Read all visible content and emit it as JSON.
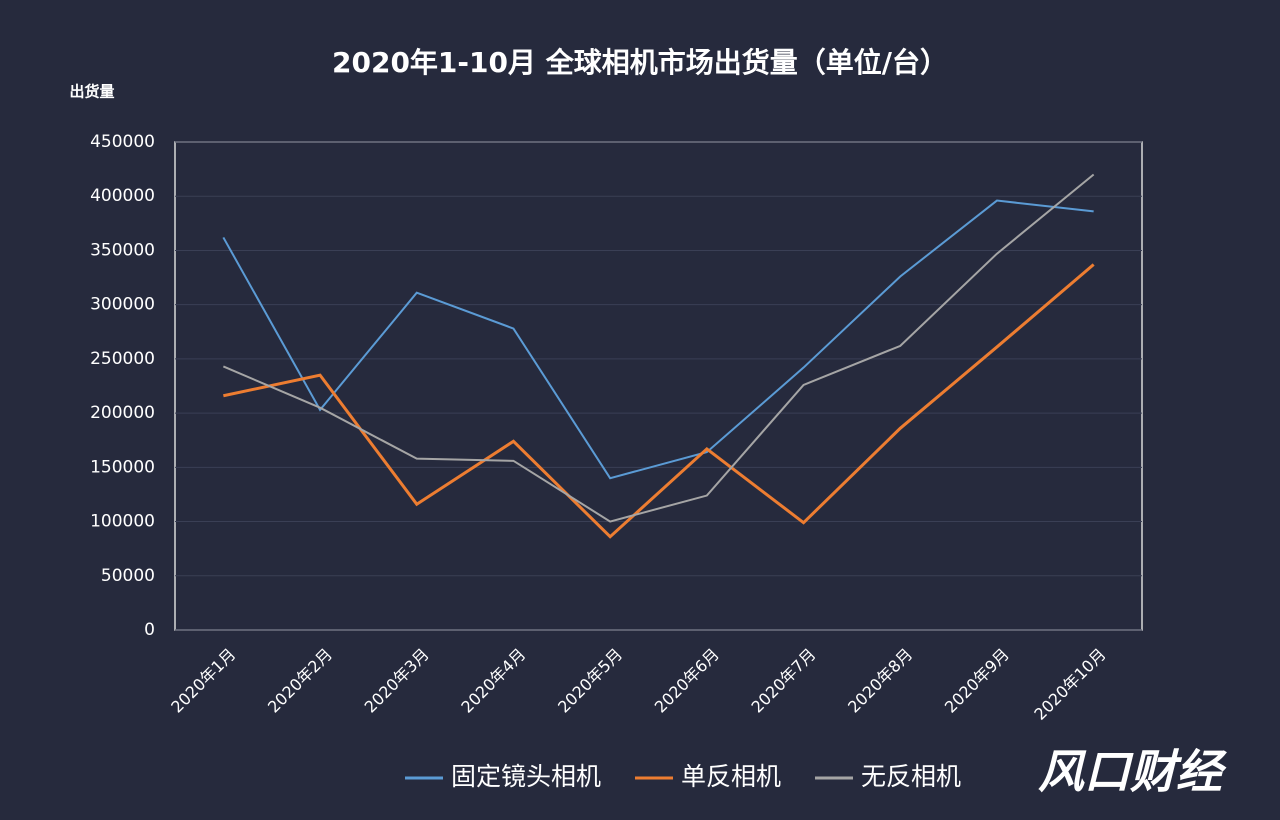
{
  "chart_data": {
    "type": "line",
    "title": "2020年1-10月 全球相机市场出货量（单位/台）",
    "y_label": "出货量",
    "categories": [
      "2020年1月",
      "2020年2月",
      "2020年3月",
      "2020年4月",
      "2020年5月",
      "2020年6月",
      "2020年7月",
      "2020年8月",
      "2020年9月",
      "2020年10月"
    ],
    "series": [
      {
        "name": "固定镜头相机",
        "color": "#5b9bd5",
        "values": [
          362000,
          203000,
          311000,
          278000,
          140000,
          164000,
          242000,
          326000,
          396000,
          386000
        ]
      },
      {
        "name": "单反相机",
        "color": "#ed7d31",
        "values": [
          216000,
          235000,
          116000,
          174000,
          86000,
          167000,
          99000,
          186000,
          261000,
          337000
        ]
      },
      {
        "name": "无反相机",
        "color": "#a5a5a5",
        "values": [
          243000,
          205000,
          158000,
          156000,
          100000,
          124000,
          226000,
          262000,
          347000,
          420000
        ]
      }
    ],
    "ylim": [
      0,
      450000
    ],
    "yticks": [
      0,
      50000,
      100000,
      150000,
      200000,
      250000,
      300000,
      350000,
      400000,
      450000
    ],
    "grid": true,
    "legend": "bottom",
    "watermark": "风口财经"
  }
}
